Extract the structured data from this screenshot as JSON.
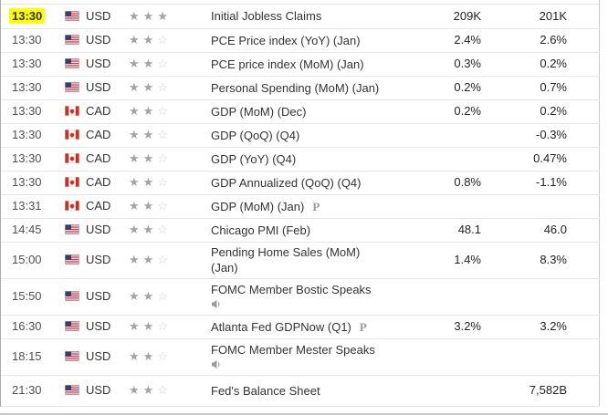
{
  "icons": {
    "star_filled": "★",
    "star_empty": "☆",
    "preliminary_label": "P",
    "speaker": "speaker-icon"
  },
  "colors": {
    "time_highlight": "#ffff00",
    "star_filled": "#a3a3a3",
    "star_empty": "#cfcfcf",
    "row_border": "#e6e6e6",
    "text": "#333333",
    "us_flag_blue": "#3c3b6e",
    "us_flag_red": "#b22234",
    "cad_red": "#d52b1e"
  },
  "table": {
    "value_columns": [
      "forecast",
      "previous"
    ],
    "stars_total": 3,
    "rows": [
      {
        "time": "13:30",
        "highlight": true,
        "country": "us",
        "currency": "USD",
        "stars": 3,
        "event_lines": [
          "Initial Jobless Claims"
        ],
        "preliminary": false,
        "speaker": false,
        "forecast": "209K",
        "previous": "201K",
        "tall": false,
        "last": false
      },
      {
        "time": "13:30",
        "highlight": false,
        "country": "us",
        "currency": "USD",
        "stars": 2,
        "event_lines": [
          "PCE Price index (YoY) (Jan)"
        ],
        "preliminary": false,
        "speaker": false,
        "forecast": "2.4%",
        "previous": "2.6%",
        "tall": false,
        "last": false
      },
      {
        "time": "13:30",
        "highlight": false,
        "country": "us",
        "currency": "USD",
        "stars": 2,
        "event_lines": [
          "PCE price index (MoM) (Jan)"
        ],
        "preliminary": false,
        "speaker": false,
        "forecast": "0.3%",
        "previous": "0.2%",
        "tall": false,
        "last": false
      },
      {
        "time": "13:30",
        "highlight": false,
        "country": "us",
        "currency": "USD",
        "stars": 2,
        "event_lines": [
          "Personal Spending (MoM) (Jan)"
        ],
        "preliminary": false,
        "speaker": false,
        "forecast": "0.2%",
        "previous": "0.7%",
        "tall": false,
        "last": false
      },
      {
        "time": "13:30",
        "highlight": false,
        "country": "ca",
        "currency": "CAD",
        "stars": 2,
        "event_lines": [
          "GDP (MoM) (Dec)"
        ],
        "preliminary": false,
        "speaker": false,
        "forecast": "0.2%",
        "previous": "0.2%",
        "tall": false,
        "last": false
      },
      {
        "time": "13:30",
        "highlight": false,
        "country": "ca",
        "currency": "CAD",
        "stars": 2,
        "event_lines": [
          "GDP (QoQ) (Q4)"
        ],
        "preliminary": false,
        "speaker": false,
        "forecast": "",
        "previous": "-0.3%",
        "tall": false,
        "last": false
      },
      {
        "time": "13:30",
        "highlight": false,
        "country": "ca",
        "currency": "CAD",
        "stars": 2,
        "event_lines": [
          "GDP (YoY) (Q4)"
        ],
        "preliminary": false,
        "speaker": false,
        "forecast": "",
        "previous": "0.47%",
        "tall": false,
        "last": false
      },
      {
        "time": "13:30",
        "highlight": false,
        "country": "ca",
        "currency": "CAD",
        "stars": 2,
        "event_lines": [
          "GDP Annualized (QoQ) (Q4)"
        ],
        "preliminary": false,
        "speaker": false,
        "forecast": "0.8%",
        "previous": "-1.1%",
        "tall": false,
        "last": false
      },
      {
        "time": "13:31",
        "highlight": false,
        "country": "ca",
        "currency": "CAD",
        "stars": 2,
        "event_lines": [
          "GDP (MoM) (Jan)"
        ],
        "preliminary": true,
        "speaker": false,
        "forecast": "",
        "previous": "",
        "tall": false,
        "last": false
      },
      {
        "time": "14:45",
        "highlight": false,
        "country": "us",
        "currency": "USD",
        "stars": 2,
        "event_lines": [
          "Chicago PMI (Feb)"
        ],
        "preliminary": false,
        "speaker": false,
        "forecast": "48.1",
        "previous": "46.0",
        "tall": false,
        "last": false
      },
      {
        "time": "15:00",
        "highlight": false,
        "country": "us",
        "currency": "USD",
        "stars": 2,
        "event_lines": [
          "Pending Home Sales (MoM)",
          "(Jan)"
        ],
        "preliminary": false,
        "speaker": false,
        "forecast": "1.4%",
        "previous": "8.3%",
        "tall": true,
        "last": false
      },
      {
        "time": "15:50",
        "highlight": false,
        "country": "us",
        "currency": "USD",
        "stars": 2,
        "event_lines": [
          "FOMC Member Bostic Speaks"
        ],
        "preliminary": false,
        "speaker": true,
        "forecast": "",
        "previous": "",
        "tall": true,
        "last": false
      },
      {
        "time": "16:30",
        "highlight": false,
        "country": "us",
        "currency": "USD",
        "stars": 2,
        "event_lines": [
          "Atlanta Fed GDPNow (Q1)"
        ],
        "preliminary": true,
        "speaker": false,
        "forecast": "3.2%",
        "previous": "3.2%",
        "tall": false,
        "last": false
      },
      {
        "time": "18:15",
        "highlight": false,
        "country": "us",
        "currency": "USD",
        "stars": 2,
        "event_lines": [
          "FOMC Member Mester Speaks"
        ],
        "preliminary": false,
        "speaker": true,
        "forecast": "",
        "previous": "",
        "tall": true,
        "last": false
      },
      {
        "time": "21:30",
        "highlight": false,
        "country": "us",
        "currency": "USD",
        "stars": 2,
        "event_lines": [
          "Fed's Balance Sheet"
        ],
        "preliminary": false,
        "speaker": false,
        "forecast": "",
        "previous": "7,582B",
        "tall": false,
        "last": true
      }
    ]
  }
}
